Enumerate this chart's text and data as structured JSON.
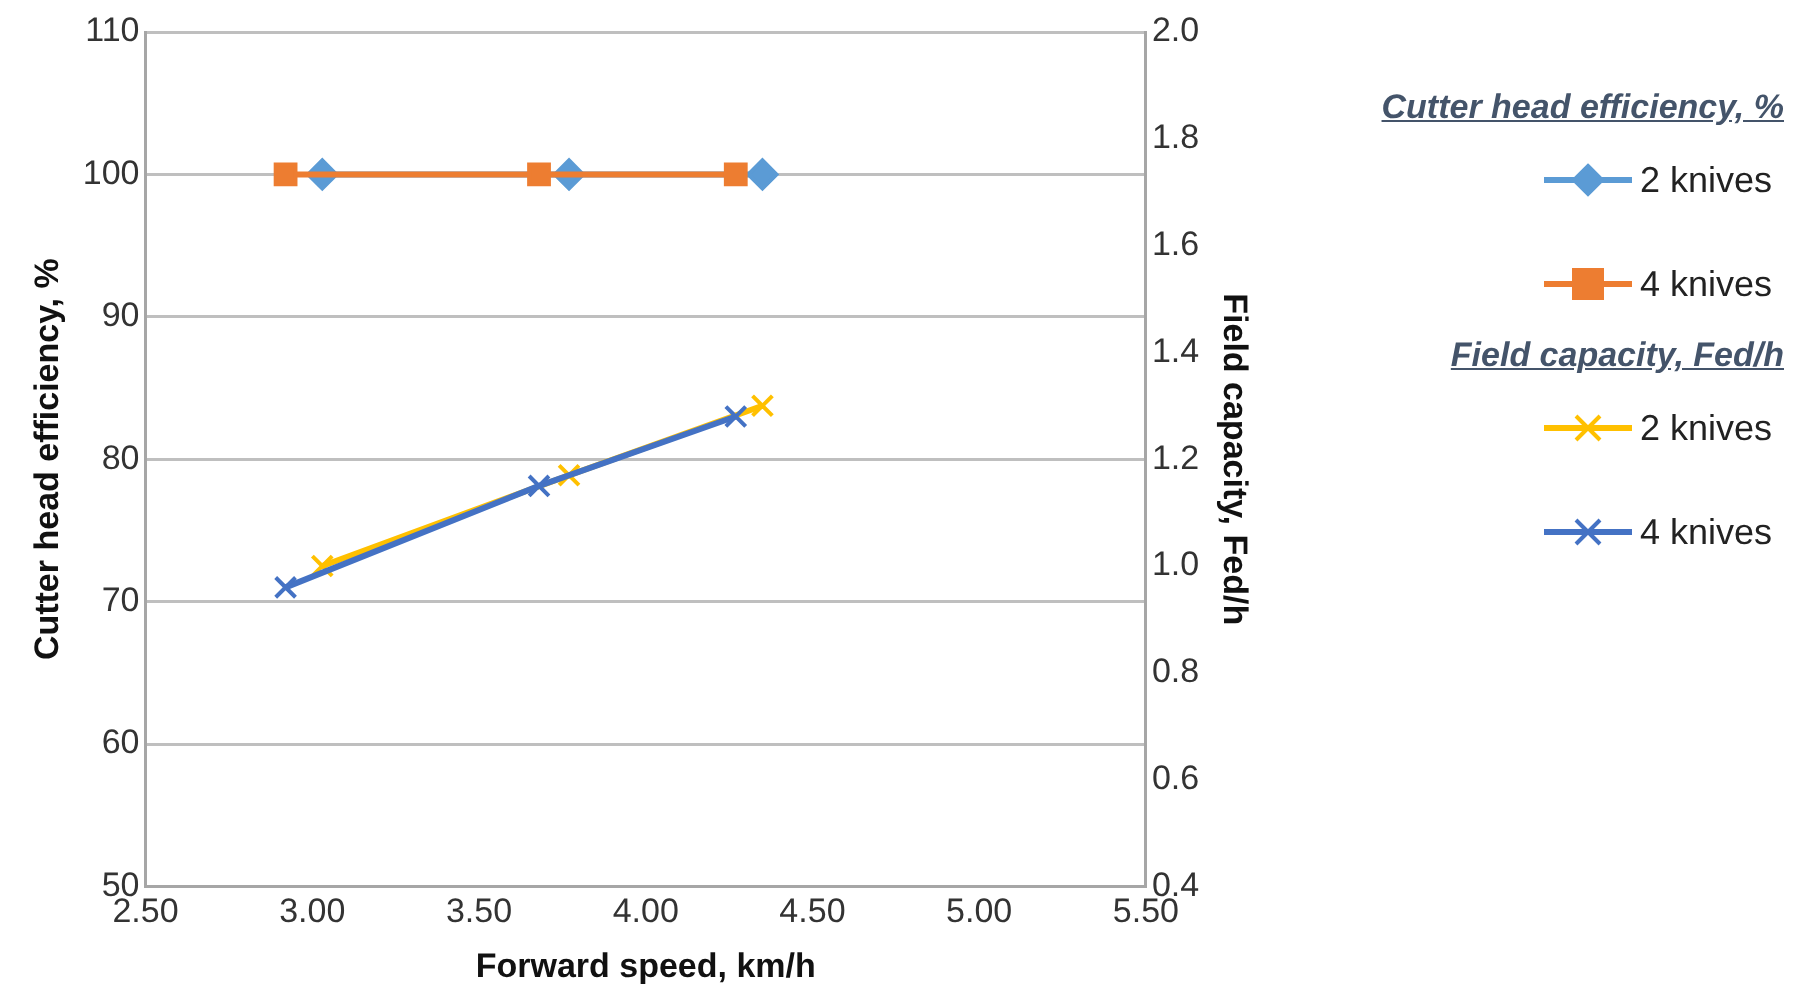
{
  "chart_data": {
    "type": "line",
    "xlabel": "Forward speed, km/h",
    "ylabel": "Cutter head efficiency, %",
    "y2label": "Field capacity, Fed/h",
    "legend_title": "Cutter head efficiency, %",
    "annotations": [
      "Field capacity, Fed/h"
    ],
    "xlim": [
      2.5,
      5.5
    ],
    "xticks": [
      {
        "value": 2.5,
        "label": "2.50"
      },
      {
        "value": 3,
        "label": "3.00"
      },
      {
        "value": 3.5,
        "label": "3.50"
      },
      {
        "value": 4,
        "label": "4.00"
      },
      {
        "value": 4.5,
        "label": "4.50"
      },
      {
        "value": 5,
        "label": "5.00"
      },
      {
        "value": 5.5,
        "label": "5.50"
      }
    ],
    "ylim": [
      50,
      110
    ],
    "yticks": [
      50,
      60,
      70,
      80,
      90,
      100,
      110
    ],
    "y2lim": [
      0.4,
      2
    ],
    "y2ticks": [
      0.4,
      0.6,
      0.8,
      {
        "value": 1,
        "label": "1.0"
      },
      1.2,
      1.4,
      1.6,
      1.8,
      {
        "value": 2,
        "label": "2.0"
      }
    ],
    "grid": "y",
    "legend": "right",
    "series": [
      {
        "name": "2 knives",
        "color": "#5b9bd5",
        "marker": "diamond",
        "x": [
          3.03,
          3.77,
          4.35
        ],
        "values": [
          100,
          100,
          100
        ]
      },
      {
        "name": "4 knives",
        "color": "#ed7d31",
        "marker": "square",
        "x": [
          2.92,
          3.68,
          4.27
        ],
        "values": [
          100,
          100,
          100
        ]
      },
      {
        "name": "2  knives",
        "color": "#ffc000",
        "marker": "cross",
        "axis": "y2",
        "x": [
          3.03,
          3.77,
          4.35
        ],
        "values": [
          1.0,
          1.17,
          1.3
        ]
      },
      {
        "name": "4  knives",
        "color": "#4472c4",
        "marker": "cross",
        "axis": "y2",
        "x": [
          2.92,
          3.68,
          4.27
        ],
        "values": [
          0.96,
          1.15,
          1.28
        ]
      }
    ]
  }
}
